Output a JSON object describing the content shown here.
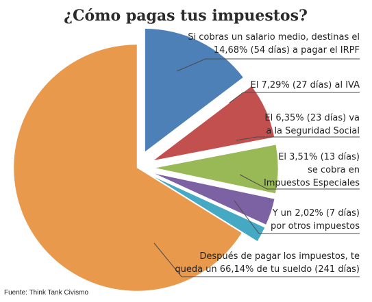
{
  "chart_data": {
    "type": "pie",
    "title": "¿Cómo pagas tus impuestos?",
    "slices": [
      {
        "value": 14.68,
        "days": 54,
        "color": "#4e80b8",
        "exploded": true,
        "label_lines": [
          "Si cobras un salario medio, destinas el",
          "14,68% (54 días) a pagar el IRPF"
        ]
      },
      {
        "value": 7.29,
        "days": 27,
        "color": "#c2504e",
        "exploded": true,
        "label_lines": [
          "El 7,29% (27 días) al IVA"
        ]
      },
      {
        "value": 6.35,
        "days": 23,
        "color": "#98b955",
        "exploded": true,
        "label_lines": [
          "El 6,35% (23 días) va",
          "a la Seguridad Social"
        ]
      },
      {
        "value": 3.51,
        "days": 13,
        "color": "#7c62a2",
        "exploded": true,
        "label_lines": [
          "El 3,51% (13 días)",
          "se cobra en",
          "Impuestos Especiales"
        ]
      },
      {
        "value": 2.02,
        "days": 7,
        "color": "#46a9c3",
        "exploded": true,
        "label_lines": [
          "Y un 2,02% (7 días)",
          "por otros impuestos"
        ]
      },
      {
        "value": 66.14,
        "days": 241,
        "color": "#e8994c",
        "exploded": false,
        "label_lines": [
          "Después de pagar los impuestos, te",
          "queda un 66,14% de tu sueldo (241 días)"
        ]
      }
    ]
  },
  "source": "Fuente: Think Tank Civismo"
}
